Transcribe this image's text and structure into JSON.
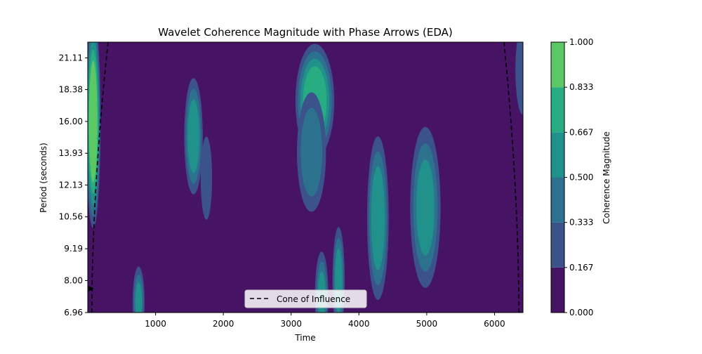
{
  "chart_data": {
    "type": "heatmap",
    "title": "Wavelet Coherence Magnitude with Phase Arrows (EDA)",
    "xlabel": "Time",
    "ylabel": "Period (seconds)",
    "xlim": [
      0,
      6420
    ],
    "ylim_labels": [
      "6.96",
      "8.00",
      "9.19",
      "10.56",
      "12.13",
      "13.93",
      "16.00",
      "18.38",
      "21.11"
    ],
    "x_ticks": [
      1000,
      2000,
      3000,
      4000,
      5000,
      6000
    ],
    "x_tick_labels": [
      "1000",
      "2000",
      "3000",
      "4000",
      "5000",
      "6000"
    ],
    "y_scale": "log2",
    "colorbar": {
      "label": "Coherence Magnitude",
      "levels": [
        0.0,
        0.167,
        0.333,
        0.5,
        0.667,
        0.833,
        1.0
      ],
      "tick_labels": [
        "0.000",
        "0.167",
        "0.333",
        "0.500",
        "0.667",
        "0.833",
        "1.000"
      ],
      "colors": [
        "#471365",
        "#3b528b",
        "#2c728e",
        "#21918c",
        "#27ad81",
        "#5cc863",
        "#c7e020"
      ]
    },
    "legend": {
      "entries": [
        "Cone of Influence"
      ],
      "placement": "lower-center"
    },
    "coherence_regions": [
      {
        "x": 80,
        "period": 16.0,
        "wx": 90,
        "wp": 0.55,
        "level": 0.95
      },
      {
        "x": 1560,
        "period": 15.0,
        "wx": 120,
        "wp": 0.32,
        "level": 0.6
      },
      {
        "x": 1750,
        "period": 12.5,
        "wx": 90,
        "wp": 0.28,
        "level": 0.3
      },
      {
        "x": 3350,
        "period": 17.5,
        "wx": 240,
        "wp": 0.3,
        "level": 0.8
      },
      {
        "x": 3300,
        "period": 14.0,
        "wx": 200,
        "wp": 0.35,
        "level": 0.45
      },
      {
        "x": 4280,
        "period": 10.5,
        "wx": 140,
        "wp": 0.45,
        "level": 0.6
      },
      {
        "x": 4980,
        "period": 11.0,
        "wx": 200,
        "wp": 0.45,
        "level": 0.55
      },
      {
        "x": 3700,
        "period": 8.0,
        "wx": 80,
        "wp": 0.3,
        "level": 0.55
      },
      {
        "x": 3450,
        "period": 7.5,
        "wx": 90,
        "wp": 0.25,
        "level": 0.5
      },
      {
        "x": 750,
        "period": 7.3,
        "wx": 80,
        "wp": 0.2,
        "level": 0.5
      },
      {
        "x": 6420,
        "period": 20.0,
        "wx": 120,
        "wp": 0.3,
        "level": 0.3
      }
    ]
  }
}
